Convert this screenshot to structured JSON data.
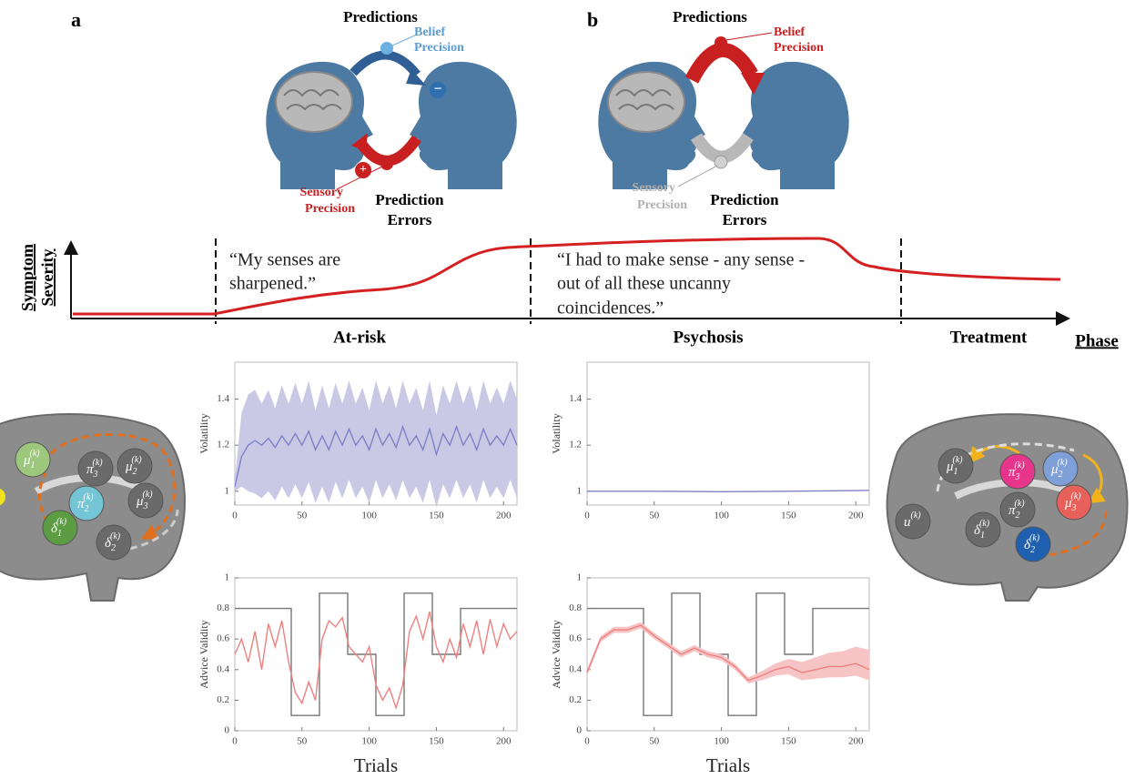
{
  "panel_a": {
    "label": "a",
    "predictions": "Predictions",
    "belief_precision": [
      "Belief",
      "Precision"
    ],
    "belief_sign": "−",
    "sensory_precision": [
      "Sensory",
      "Precision"
    ],
    "sensory_sign": "+",
    "prediction_errors": [
      "Prediction",
      "Errors"
    ]
  },
  "panel_b": {
    "label": "b",
    "predictions": "Predictions",
    "belief_precision": [
      "Belief",
      "Precision"
    ],
    "sensory_precision": [
      "Sensory",
      "Precision"
    ],
    "prediction_errors": [
      "Prediction",
      "Errors"
    ]
  },
  "timeline": {
    "y_label": [
      "Symptom",
      "Severity"
    ],
    "x_label": "Phase",
    "quotes": [
      [
        "“My senses are",
        "sharpened.”"
      ],
      [
        "“I had to make sense - any sense -",
        "out of all these uncanny",
        "coincidences.”"
      ]
    ],
    "phases": [
      "At-risk",
      "Psychosis",
      "Treatment"
    ]
  },
  "brain_left": {
    "nodes": [
      {
        "symbol": "μ",
        "sub": "1",
        "sup": "(k)",
        "color": "#9cc77d"
      },
      {
        "symbol": "π",
        "sub": "3",
        "sup": "(k)",
        "color": "#6a6a6a"
      },
      {
        "symbol": "μ",
        "sub": "2",
        "sup": "(k)",
        "color": "#6a6a6a"
      },
      {
        "symbol": "π",
        "sub": "2",
        "sup": "(k)",
        "color": "#74c6d6"
      },
      {
        "symbol": "μ",
        "sub": "3",
        "sup": "(k)",
        "color": "#6a6a6a"
      },
      {
        "symbol": "δ",
        "sub": "1",
        "sup": "(k)",
        "color": "#5c9c42"
      },
      {
        "symbol": "δ",
        "sub": "2",
        "sup": "(k)",
        "color": "#6a6a6a"
      }
    ]
  },
  "brain_right": {
    "nodes": [
      {
        "symbol": "μ",
        "sub": "1",
        "sup": "(k)",
        "color": "#6a6a6a"
      },
      {
        "symbol": "π",
        "sub": "3",
        "sup": "(k)",
        "color": "#e6358b"
      },
      {
        "symbol": "μ",
        "sub": "2",
        "sup": "(k)",
        "color": "#7f9fd8"
      },
      {
        "symbol": "u",
        "sup": "(k)",
        "color": "#6a6a6a"
      },
      {
        "symbol": "π",
        "sub": "2",
        "sup": "(k)",
        "color": "#6a6a6a"
      },
      {
        "symbol": "μ",
        "sub": "3",
        "sup": "(k)",
        "color": "#e8605a"
      },
      {
        "symbol": "δ",
        "sub": "1",
        "sup": "(k)",
        "color": "#6a6a6a"
      },
      {
        "symbol": "δ",
        "sub": "2",
        "sup": "(k)",
        "color": "#1f5fb0"
      }
    ]
  },
  "chart_data": [
    {
      "type": "line",
      "y_label": "Volatility",
      "xlim": [
        0,
        210
      ],
      "xticks": [
        0,
        50,
        100,
        150,
        200
      ],
      "ylim": [
        0.94,
        1.56
      ],
      "yticks": [
        1,
        1.2,
        1.4
      ],
      "series": [
        {
          "color": "#8080c8",
          "band_color": "#c9c9e6",
          "x": [
            0,
            5,
            10,
            15,
            20,
            25,
            30,
            35,
            40,
            45,
            50,
            55,
            60,
            65,
            70,
            75,
            80,
            85,
            90,
            95,
            100,
            105,
            110,
            115,
            120,
            125,
            130,
            135,
            140,
            145,
            150,
            155,
            160,
            165,
            170,
            175,
            180,
            185,
            190,
            195,
            200,
            205,
            210
          ],
          "values": [
            1.02,
            1.15,
            1.2,
            1.22,
            1.2,
            1.23,
            1.19,
            1.24,
            1.2,
            1.25,
            1.2,
            1.26,
            1.18,
            1.24,
            1.18,
            1.26,
            1.2,
            1.27,
            1.2,
            1.24,
            1.18,
            1.27,
            1.2,
            1.25,
            1.19,
            1.28,
            1.2,
            1.24,
            1.18,
            1.27,
            1.16,
            1.25,
            1.2,
            1.28,
            1.2,
            1.25,
            1.18,
            1.27,
            1.2,
            1.24,
            1.2,
            1.27,
            1.2
          ],
          "upper": [
            1.05,
            1.34,
            1.42,
            1.44,
            1.38,
            1.44,
            1.36,
            1.46,
            1.38,
            1.47,
            1.38,
            1.48,
            1.35,
            1.46,
            1.36,
            1.47,
            1.38,
            1.48,
            1.38,
            1.45,
            1.35,
            1.48,
            1.38,
            1.46,
            1.36,
            1.48,
            1.38,
            1.45,
            1.35,
            1.48,
            1.33,
            1.46,
            1.38,
            1.48,
            1.38,
            1.46,
            1.35,
            1.48,
            1.38,
            1.45,
            1.38,
            1.48,
            1.4
          ],
          "lower": [
            1.0,
            1.02,
            1.0,
            0.99,
            0.97,
            1.0,
            0.96,
            1.02,
            0.97,
            1.03,
            0.97,
            1.04,
            0.95,
            1.02,
            0.95,
            1.04,
            0.97,
            1.05,
            0.97,
            1.02,
            0.95,
            1.05,
            0.97,
            1.03,
            0.96,
            1.05,
            0.97,
            1.02,
            0.95,
            1.05,
            0.93,
            1.03,
            0.97,
            1.05,
            0.97,
            1.03,
            0.95,
            1.05,
            0.97,
            1.02,
            0.97,
            1.05,
            0.97
          ]
        }
      ]
    },
    {
      "type": "line",
      "y_label": "Volatility",
      "xlim": [
        0,
        210
      ],
      "xticks": [
        0,
        50,
        100,
        150,
        200
      ],
      "ylim": [
        0.94,
        1.56
      ],
      "yticks": [
        1,
        1.2,
        1.4
      ],
      "series": [
        {
          "color": "#8080c8",
          "x": [
            0,
            50,
            100,
            150,
            200,
            210
          ],
          "values": [
            1,
            1,
            0.998,
            1,
            1.003,
            1.004
          ]
        }
      ]
    },
    {
      "type": "line",
      "y_label": "Advice Validity",
      "x_label": "Trials",
      "xlim": [
        0,
        210
      ],
      "xticks": [
        0,
        50,
        100,
        150,
        200
      ],
      "ylim": [
        0,
        1
      ],
      "yticks": [
        0,
        0.2,
        0.4,
        0.6,
        0.8,
        1
      ],
      "series": [
        {
          "color": "#777777",
          "x": [
            0,
            42,
            42,
            63,
            63,
            84,
            84,
            105,
            105,
            126,
            126,
            147,
            147,
            168,
            168,
            210
          ],
          "values": [
            0.8,
            0.8,
            0.1,
            0.1,
            0.9,
            0.9,
            0.5,
            0.5,
            0.1,
            0.1,
            0.9,
            0.9,
            0.5,
            0.5,
            0.8,
            0.8
          ]
        },
        {
          "color": "#ee8080",
          "x": [
            0,
            5,
            10,
            15,
            20,
            25,
            30,
            35,
            40,
            45,
            50,
            55,
            60,
            65,
            70,
            75,
            80,
            85,
            90,
            95,
            100,
            105,
            110,
            115,
            120,
            125,
            130,
            135,
            140,
            145,
            150,
            155,
            160,
            165,
            170,
            175,
            180,
            185,
            190,
            195,
            200,
            205,
            210
          ],
          "values": [
            0.5,
            0.6,
            0.45,
            0.65,
            0.4,
            0.7,
            0.55,
            0.72,
            0.45,
            0.25,
            0.18,
            0.32,
            0.2,
            0.6,
            0.72,
            0.68,
            0.74,
            0.55,
            0.5,
            0.45,
            0.55,
            0.3,
            0.2,
            0.28,
            0.15,
            0.3,
            0.65,
            0.75,
            0.6,
            0.78,
            0.55,
            0.45,
            0.6,
            0.48,
            0.7,
            0.55,
            0.72,
            0.5,
            0.73,
            0.55,
            0.7,
            0.6,
            0.65
          ]
        }
      ]
    },
    {
      "type": "line",
      "y_label": "Advice Validity",
      "x_label": "Trials",
      "xlim": [
        0,
        210
      ],
      "xticks": [
        0,
        50,
        100,
        150,
        200
      ],
      "ylim": [
        0,
        1
      ],
      "yticks": [
        0,
        0.2,
        0.4,
        0.6,
        0.8,
        1
      ],
      "series": [
        {
          "color": "#777777",
          "x": [
            0,
            42,
            42,
            63,
            63,
            84,
            84,
            105,
            105,
            126,
            126,
            147,
            147,
            168,
            168,
            210
          ],
          "values": [
            0.8,
            0.8,
            0.1,
            0.1,
            0.9,
            0.9,
            0.5,
            0.5,
            0.1,
            0.1,
            0.9,
            0.9,
            0.5,
            0.5,
            0.8,
            0.8
          ]
        },
        {
          "color": "#ee8080",
          "band_color": "#f6c4c4",
          "x": [
            0,
            10,
            20,
            30,
            40,
            50,
            60,
            70,
            80,
            90,
            100,
            110,
            120,
            130,
            140,
            150,
            160,
            170,
            180,
            190,
            200,
            210
          ],
          "values": [
            0.38,
            0.6,
            0.66,
            0.66,
            0.69,
            0.62,
            0.56,
            0.5,
            0.54,
            0.5,
            0.48,
            0.42,
            0.33,
            0.36,
            0.4,
            0.42,
            0.38,
            0.4,
            0.42,
            0.42,
            0.44,
            0.4
          ],
          "upper": [
            0.4,
            0.62,
            0.68,
            0.68,
            0.71,
            0.64,
            0.58,
            0.52,
            0.56,
            0.52,
            0.5,
            0.44,
            0.35,
            0.39,
            0.44,
            0.47,
            0.45,
            0.48,
            0.51,
            0.52,
            0.55,
            0.53
          ],
          "lower": [
            0.36,
            0.58,
            0.64,
            0.64,
            0.67,
            0.6,
            0.54,
            0.48,
            0.52,
            0.48,
            0.46,
            0.4,
            0.31,
            0.33,
            0.36,
            0.37,
            0.33,
            0.34,
            0.35,
            0.35,
            0.36,
            0.33
          ]
        }
      ]
    }
  ]
}
